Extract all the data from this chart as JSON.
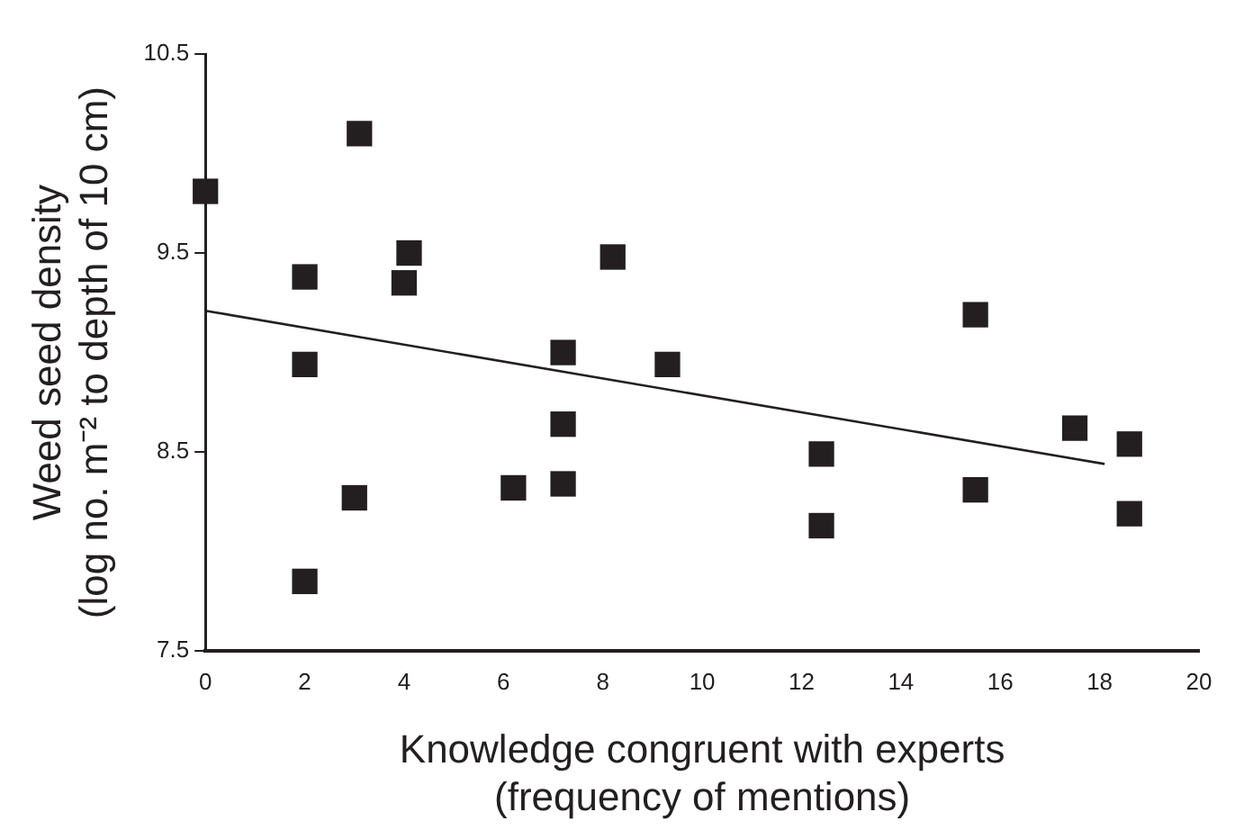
{
  "chart_data": {
    "type": "scatter",
    "xlabel": "Knowledge congruent with experts\n(frequency of mentions)",
    "ylabel": "Weed seed density\n(log no. m⁻² to depth of 10 cm)",
    "xlim": [
      0,
      20
    ],
    "xticks": [
      0,
      2,
      4,
      6,
      8,
      10,
      12,
      14,
      16,
      18,
      20
    ],
    "ylim": [
      7.5,
      10.5
    ],
    "yticks": [
      7.5,
      8.5,
      9.5,
      10.5
    ],
    "grid": false,
    "legend": false,
    "marker": "square",
    "series": [
      {
        "color": "#231f20",
        "x": [
          0,
          3.1,
          2,
          2,
          3,
          2,
          4.1,
          4,
          8.2,
          7.2,
          9.3,
          7.2,
          6.2,
          7.2,
          12.4,
          12.4,
          15.5,
          15.5,
          17.5,
          18.6,
          18.6
        ],
        "values": [
          9.81,
          10.1,
          9.38,
          8.94,
          8.27,
          7.85,
          9.5,
          9.35,
          9.48,
          9.0,
          8.94,
          8.64,
          8.32,
          8.34,
          8.49,
          8.13,
          9.19,
          8.31,
          8.62,
          8.54,
          8.19
        ]
      },
      {
        "type": "line",
        "marker": "none",
        "color": "#231f20",
        "x": [
          0,
          18.1
        ],
        "values": [
          9.21,
          8.44
        ]
      }
    ]
  }
}
